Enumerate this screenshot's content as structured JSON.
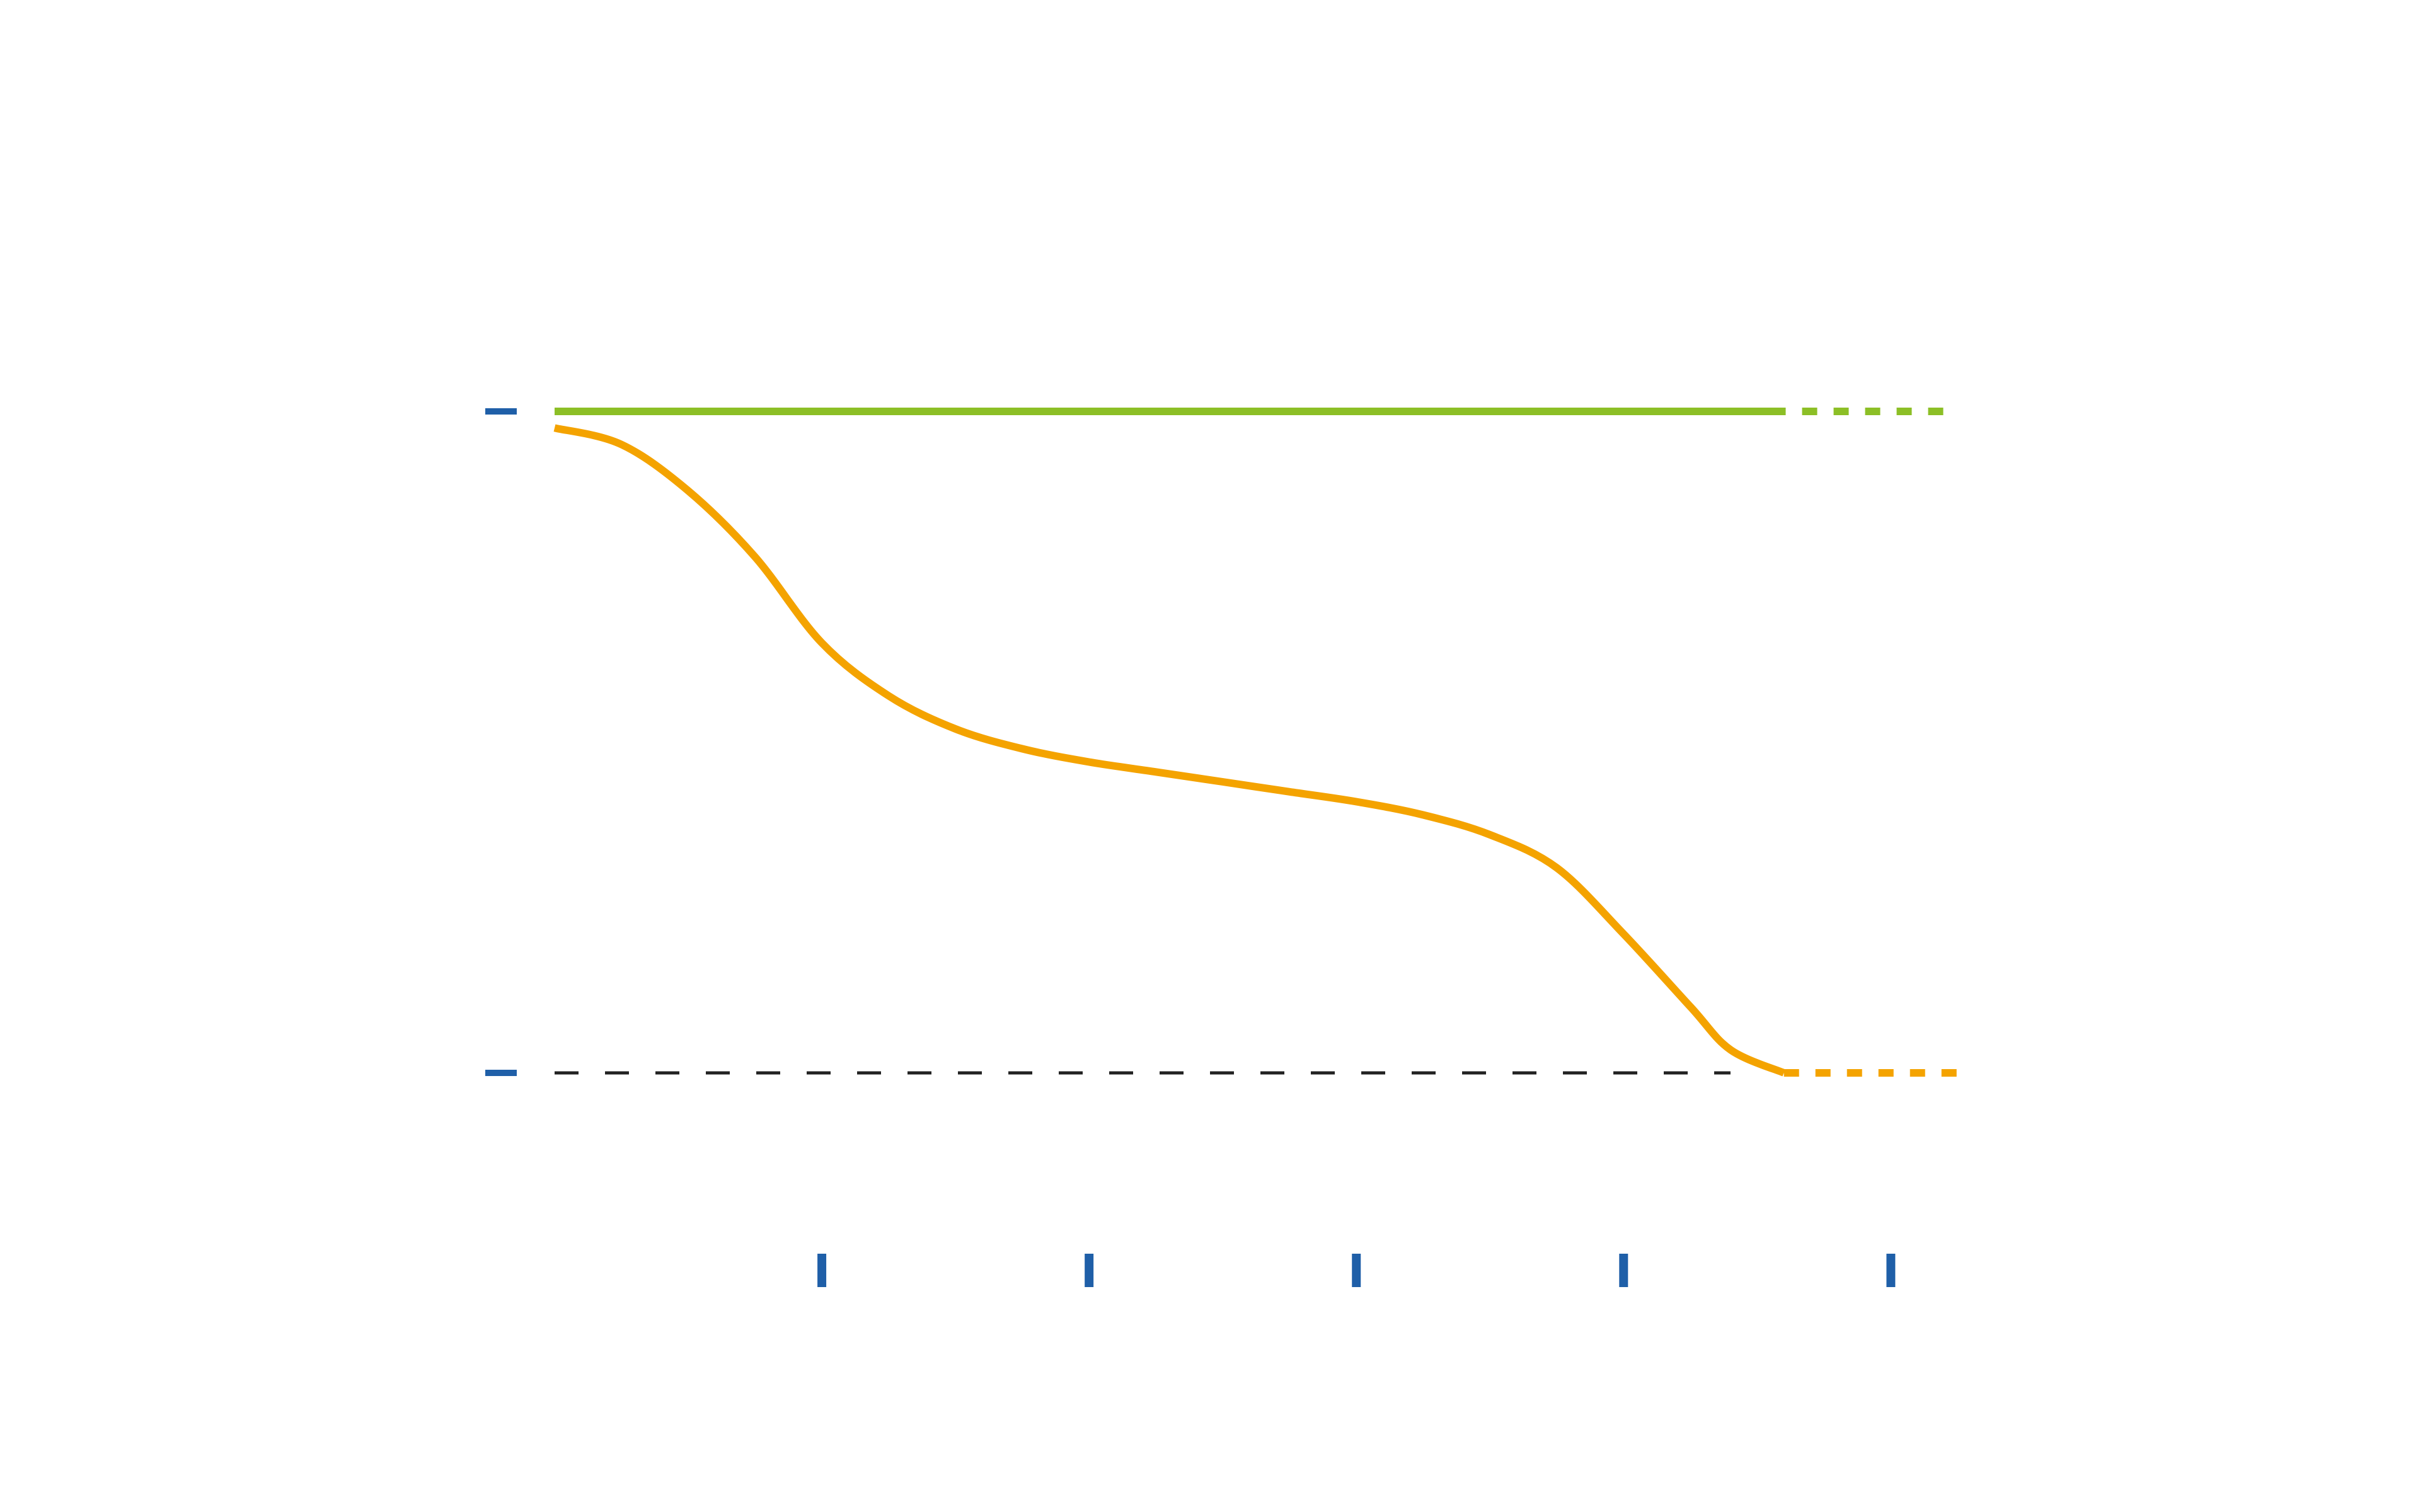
{
  "colors": {
    "background": "#ffffff",
    "reference_line": "#8cbf26",
    "curve": "#f4a300",
    "baseline": "#222222",
    "tick_marks": "#1f5fa8"
  },
  "chart_data": {
    "type": "line",
    "title": "",
    "xlabel": "",
    "ylabel": "",
    "xlim": [
      0,
      5.4
    ],
    "ylim": [
      0,
      1
    ],
    "grid": false,
    "legend": "none",
    "x_ticks": [
      1,
      2,
      3,
      4,
      5
    ],
    "y_ticks": [
      0,
      1
    ],
    "baseline": {
      "y": 0,
      "style": "dashed",
      "x_range": [
        0,
        4.4
      ]
    },
    "series": [
      {
        "style": "solid",
        "points": [
          [
            0,
            1.0
          ],
          [
            4.55,
            1.0
          ]
        ],
        "extension": {
          "style": "dotted",
          "points": [
            [
              4.55,
              1.0
            ],
            [
              5.25,
              1.0
            ]
          ]
        }
      },
      {
        "style": "solid",
        "points": [
          [
            0,
            0.975
          ],
          [
            0.25,
            0.95
          ],
          [
            0.5,
            0.88
          ],
          [
            0.75,
            0.78
          ],
          [
            1.0,
            0.65
          ],
          [
            1.25,
            0.57
          ],
          [
            1.5,
            0.52
          ],
          [
            1.75,
            0.49
          ],
          [
            2.0,
            0.47
          ],
          [
            2.25,
            0.455
          ],
          [
            2.5,
            0.44
          ],
          [
            2.75,
            0.425
          ],
          [
            3.0,
            0.41
          ],
          [
            3.25,
            0.39
          ],
          [
            3.5,
            0.36
          ],
          [
            3.75,
            0.31
          ],
          [
            4.0,
            0.21
          ],
          [
            4.25,
            0.1
          ],
          [
            4.4,
            0.035
          ],
          [
            4.6,
            0.0
          ]
        ],
        "extension": {
          "style": "dotted",
          "points": [
            [
              4.6,
              0.0
            ],
            [
              5.25,
              0.0
            ]
          ]
        }
      }
    ]
  }
}
